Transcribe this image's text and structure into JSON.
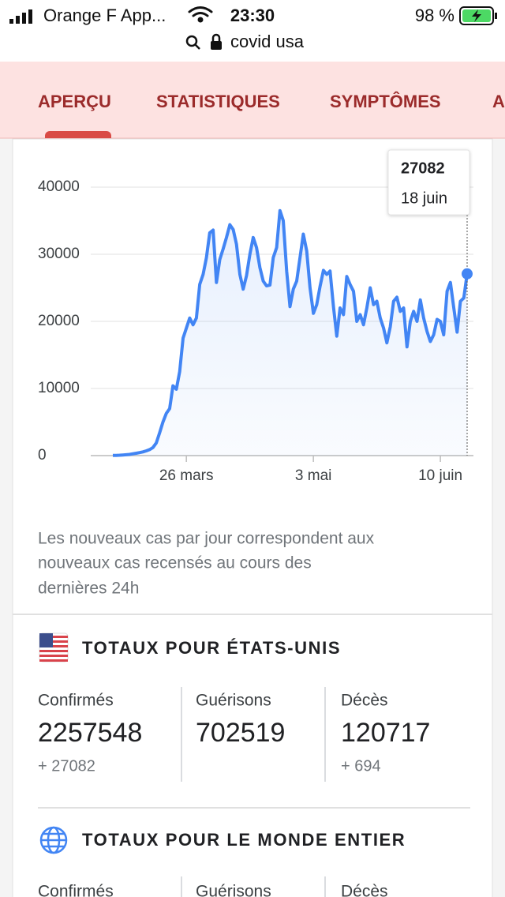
{
  "status_bar": {
    "carrier": "Orange F App...",
    "time": "23:30",
    "battery": "98 %"
  },
  "url_bar": {
    "query": "covid usa"
  },
  "tabs": [
    "APERÇU",
    "STATISTIQUES",
    "SYMPTÔMES",
    "A"
  ],
  "chart_data": {
    "type": "line",
    "categories": [
      null,
      null,
      null,
      null,
      null,
      null,
      null,
      null,
      null,
      null,
      null,
      null,
      null,
      null,
      null,
      null,
      null,
      null,
      null,
      null,
      null,
      null,
      "26 mars",
      null,
      null,
      null,
      null,
      null,
      null,
      null,
      null,
      null,
      null,
      null,
      null,
      null,
      null,
      null,
      null,
      null,
      null,
      null,
      null,
      null,
      null,
      null,
      null,
      null,
      null,
      null,
      null,
      null,
      null,
      null,
      null,
      null,
      null,
      null,
      null,
      null,
      "3 mai",
      null,
      null,
      null,
      null,
      null,
      null,
      null,
      null,
      null,
      null,
      null,
      null,
      null,
      null,
      null,
      null,
      null,
      null,
      null,
      null,
      null,
      null,
      null,
      null,
      null,
      null,
      null,
      null,
      null,
      null,
      null,
      null,
      null,
      null,
      null,
      null,
      null,
      "10 juin",
      null,
      null,
      null,
      null,
      null,
      null,
      null,
      null
    ],
    "values": [
      20,
      30,
      60,
      90,
      130,
      180,
      270,
      350,
      450,
      550,
      700,
      900,
      1200,
      1900,
      3400,
      5000,
      6300,
      7000,
      10400,
      9900,
      12500,
      17500,
      19000,
      20500,
      19500,
      20500,
      25500,
      27000,
      29500,
      33200,
      33600,
      25800,
      29200,
      30800,
      32500,
      34400,
      33700,
      31500,
      27000,
      24800,
      26800,
      30000,
      32500,
      31000,
      28000,
      26000,
      25300,
      25400,
      29500,
      31000,
      36500,
      35000,
      27500,
      22200,
      24800,
      26000,
      29500,
      33000,
      30500,
      25000,
      21200,
      22500,
      25200,
      27600,
      27000,
      27500,
      22200,
      17800,
      22000,
      21000,
      26700,
      25500,
      24500,
      20000,
      21000,
      19500,
      22000,
      25000,
      22500,
      23000,
      20500,
      19000,
      16800,
      19200,
      23000,
      23600,
      21500,
      22000,
      16200,
      20000,
      21500,
      20000,
      23200,
      20500,
      18500,
      17000,
      18000,
      20300,
      20000,
      18000,
      24500,
      25800,
      22000,
      18400,
      23000,
      23500,
      27082
    ],
    "color": "#4285f4",
    "ylim": [
      0,
      40000
    ],
    "yticks": [
      0,
      10000,
      20000,
      30000,
      40000
    ],
    "grid": true,
    "tooltip_date": "18 juin"
  },
  "note": [
    "Les nouveaux cas par jour correspondent aux",
    "nouveaux cas recensés au cours des",
    "dernières 24h"
  ],
  "totals_us": {
    "title": "TOTAUX POUR ÉTATS-UNIS",
    "stats": [
      {
        "label": "Confirmés",
        "value": 2257548,
        "delta": "+ 27082"
      },
      {
        "label": "Guérisons",
        "value": 702519
      },
      {
        "label": "Décès",
        "value": 120717,
        "delta": "+ 694"
      }
    ]
  },
  "totals_world": {
    "title": "TOTAUX POUR LE MONDE ENTIER",
    "stats": [
      {
        "label": "Confirmés"
      },
      {
        "label": "Guérisons"
      },
      {
        "label": "Décès"
      }
    ]
  }
}
